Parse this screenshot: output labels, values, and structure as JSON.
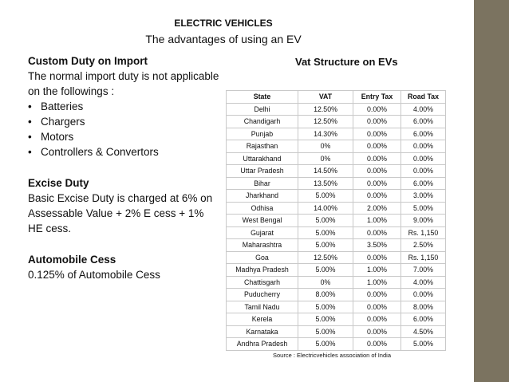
{
  "header": {
    "title": "ELECTRIC VEHICLES",
    "subtitle": "The advantages of using an EV"
  },
  "custom_duty": {
    "heading": "Custom Duty on Import",
    "text": "The normal import duty is not applicable on the followings :",
    "items": [
      "Batteries",
      "Chargers",
      "Motors",
      "Controllers & Convertors"
    ]
  },
  "excise_duty": {
    "heading": "Excise Duty",
    "text": "Basic Excise Duty is charged at 6% on Assessable Value + 2% E cess + 1% HE cess."
  },
  "automobile_cess": {
    "heading": "Automobile Cess",
    "text": "0.125% of Automobile Cess"
  },
  "vat_table": {
    "title": "Vat Structure on EVs",
    "columns": [
      "State",
      "VAT",
      "Entry Tax",
      "Road Tax"
    ],
    "rows": [
      [
        "Delhi",
        "12.50%",
        "0.00%",
        "4.00%"
      ],
      [
        "Chandigarh",
        "12.50%",
        "0.00%",
        "6.00%"
      ],
      [
        "Punjab",
        "14.30%",
        "0.00%",
        "6.00%"
      ],
      [
        "Rajasthan",
        "0%",
        "0.00%",
        "0.00%"
      ],
      [
        "Uttarakhand",
        "0%",
        "0.00%",
        "0.00%"
      ],
      [
        "Uttar Pradesh",
        "14.50%",
        "0.00%",
        "0.00%"
      ],
      [
        "Bihar",
        "13.50%",
        "0.00%",
        "6.00%"
      ],
      [
        "Jharkhand",
        "5.00%",
        "0.00%",
        "3.00%"
      ],
      [
        "Odhisa",
        "14.00%",
        "2.00%",
        "5.00%"
      ],
      [
        "West Bengal",
        "5.00%",
        "1.00%",
        "9.00%"
      ],
      [
        "Gujarat",
        "5.00%",
        "0.00%",
        "Rs. 1,150"
      ],
      [
        "Maharashtra",
        "5.00%",
        "3.50%",
        "2.50%"
      ],
      [
        "Goa",
        "12.50%",
        "0.00%",
        "Rs. 1,150"
      ],
      [
        "Madhya Pradesh",
        "5.00%",
        "1.00%",
        "7.00%"
      ],
      [
        "Chattisgarh",
        "0%",
        "1.00%",
        "4.00%"
      ],
      [
        "Puducherry",
        "8.00%",
        "0.00%",
        "0.00%"
      ],
      [
        "Tamil Nadu",
        "5.00%",
        "0.00%",
        "8.00%"
      ],
      [
        "Kerela",
        "5.00%",
        "0.00%",
        "6.00%"
      ],
      [
        "Karnataka",
        "5.00%",
        "0.00%",
        "4.50%"
      ],
      [
        "Andhra Pradesh",
        "5.00%",
        "0.00%",
        "5.00%"
      ]
    ],
    "source": "Source : Electricvehicles association of India"
  }
}
